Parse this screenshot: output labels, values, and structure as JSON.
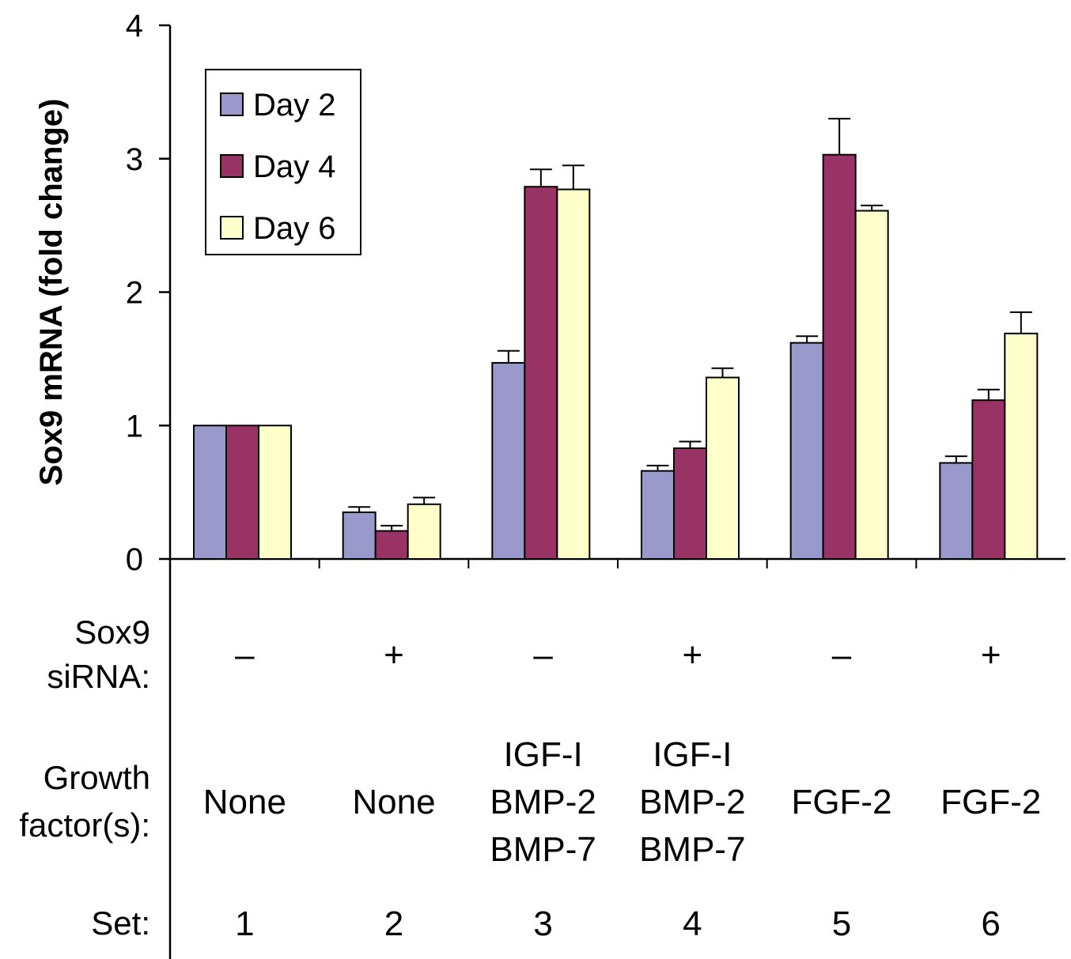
{
  "chart_data": {
    "type": "bar",
    "ylabel": "Sox9 mRNA (fold change)",
    "xlabel": "",
    "ylim": [
      0,
      4
    ],
    "yticks": [
      "0",
      "1",
      "2",
      "3",
      "4"
    ],
    "grid": false,
    "legend_position": "top-left",
    "categories": [
      "1",
      "2",
      "3",
      "4",
      "5",
      "6"
    ],
    "series": [
      {
        "name": "Day 2",
        "color": "#9999cc",
        "values": [
          1.0,
          0.35,
          1.47,
          0.66,
          1.62,
          0.72
        ],
        "errors": [
          0.0,
          0.04,
          0.09,
          0.04,
          0.05,
          0.05
        ]
      },
      {
        "name": "Day 4",
        "color": "#993366",
        "values": [
          1.0,
          0.21,
          2.79,
          0.83,
          3.03,
          1.19
        ],
        "errors": [
          0.0,
          0.04,
          0.13,
          0.05,
          0.27,
          0.08
        ]
      },
      {
        "name": "Day 6",
        "color": "#ffffcc",
        "values": [
          1.0,
          0.41,
          2.77,
          1.36,
          2.61,
          1.69
        ],
        "errors": [
          0.0,
          0.05,
          0.18,
          0.07,
          0.04,
          0.16
        ]
      }
    ],
    "table": {
      "rows": [
        {
          "label": [
            "Sox9",
            "siRNA:"
          ],
          "cells": [
            [
              "–"
            ],
            [
              "+"
            ],
            [
              "–"
            ],
            [
              "+"
            ],
            [
              "–"
            ],
            [
              "+"
            ]
          ]
        },
        {
          "label": [
            "Growth",
            "factor(s):"
          ],
          "cells": [
            [
              "None"
            ],
            [
              "None"
            ],
            [
              "IGF-I",
              "BMP-2",
              "BMP-7"
            ],
            [
              "IGF-I",
              "BMP-2",
              "BMP-7"
            ],
            [
              "FGF-2"
            ],
            [
              "FGF-2"
            ]
          ]
        },
        {
          "label": [
            "Set:"
          ],
          "cells": [
            [
              "1"
            ],
            [
              "2"
            ],
            [
              "3"
            ],
            [
              "4"
            ],
            [
              "5"
            ],
            [
              "6"
            ]
          ]
        }
      ]
    }
  }
}
